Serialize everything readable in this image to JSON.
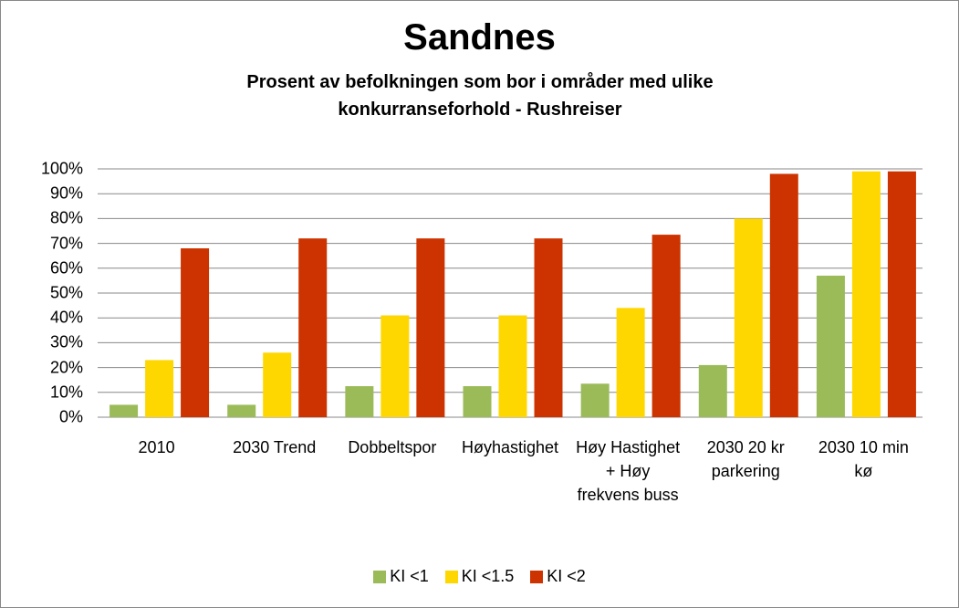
{
  "chart_data": {
    "type": "bar",
    "title": "Sandnes",
    "subtitle": "Prosent av befolkningen som bor i områder med ulike konkurranseforhold - Rushreiser",
    "categories": [
      "2010",
      "2030 Trend",
      "Dobbeltspor",
      "Høyhastighet",
      "Høy Hastighet + Høy frekvens buss",
      "2030 20 kr parkering",
      "2030 10 min kø"
    ],
    "series": [
      {
        "name": "KI <1",
        "color": "#9bbb59",
        "values": [
          5,
          5,
          12.5,
          12.5,
          13.5,
          21,
          57
        ]
      },
      {
        "name": "KI <1.5",
        "color": "#ffd700",
        "values": [
          23,
          26,
          41,
          41,
          44,
          80,
          99
        ]
      },
      {
        "name": "KI <2",
        "color": "#cc3300",
        "values": [
          68,
          72,
          72,
          72,
          73.5,
          98,
          99
        ]
      }
    ],
    "ylim": [
      0,
      100
    ],
    "yticks": [
      {
        "value": 0,
        "label": "0%"
      },
      {
        "value": 10,
        "label": "10%"
      },
      {
        "value": 20,
        "label": "20%"
      },
      {
        "value": 30,
        "label": "30%"
      },
      {
        "value": 40,
        "label": "40%"
      },
      {
        "value": 50,
        "label": "50%"
      },
      {
        "value": 60,
        "label": "60%"
      },
      {
        "value": 70,
        "label": "70%"
      },
      {
        "value": 80,
        "label": "80%"
      },
      {
        "value": 90,
        "label": "90%"
      },
      {
        "value": 100,
        "label": "100%"
      }
    ],
    "grid": true,
    "legend": "bottom"
  }
}
